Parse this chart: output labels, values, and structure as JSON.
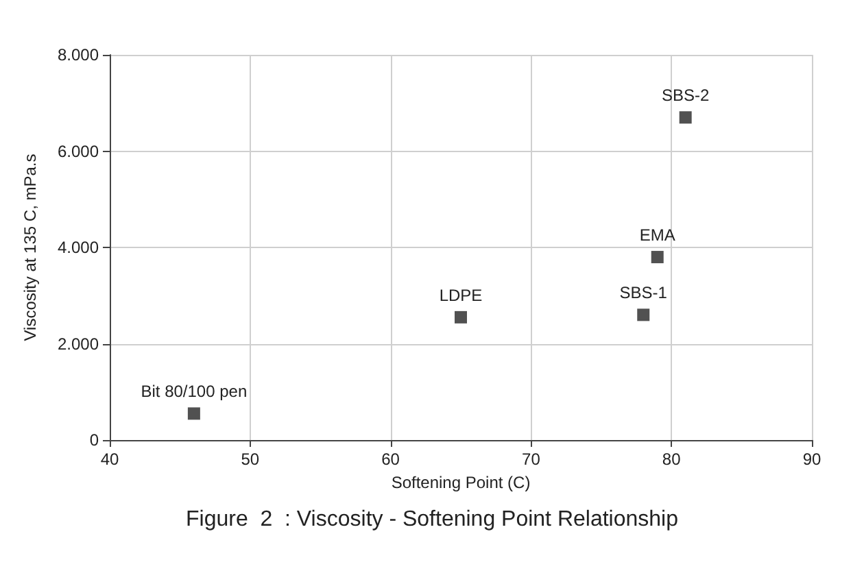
{
  "chart_data": {
    "type": "scatter",
    "title": "Figure  2  : Viscosity - Softening Point Relationship",
    "xlabel": "Softening Point (C)",
    "ylabel": "Viscosity at 135 C, mPa.s",
    "x": [
      46,
      65,
      78,
      79,
      81
    ],
    "values": [
      550,
      2550,
      2600,
      3800,
      6700
    ],
    "color": "#262626",
    "marker": "square",
    "xlim": [
      40,
      90
    ],
    "xticks": [
      40,
      50,
      60,
      70,
      80,
      90
    ],
    "ylim": [
      0,
      8000
    ],
    "yticks": [
      0,
      {
        "value": 2000,
        "label": "2.000"
      },
      {
        "value": 4000,
        "label": "4.000"
      },
      {
        "value": 6000,
        "label": "6.000"
      },
      {
        "value": 8000,
        "label": "8.000"
      }
    ],
    "grid": true,
    "annotations": [
      {
        "text": "Bit 80/100 pen",
        "x": 46,
        "y": 550
      },
      {
        "text": "LDPE",
        "x": 65,
        "y": 2550
      },
      {
        "text": "SBS-1",
        "x": 78,
        "y": 2600
      },
      {
        "text": "EMA",
        "x": 79,
        "y": 3800
      },
      {
        "text": "SBS-2",
        "x": 81,
        "y": 6700
      }
    ]
  }
}
